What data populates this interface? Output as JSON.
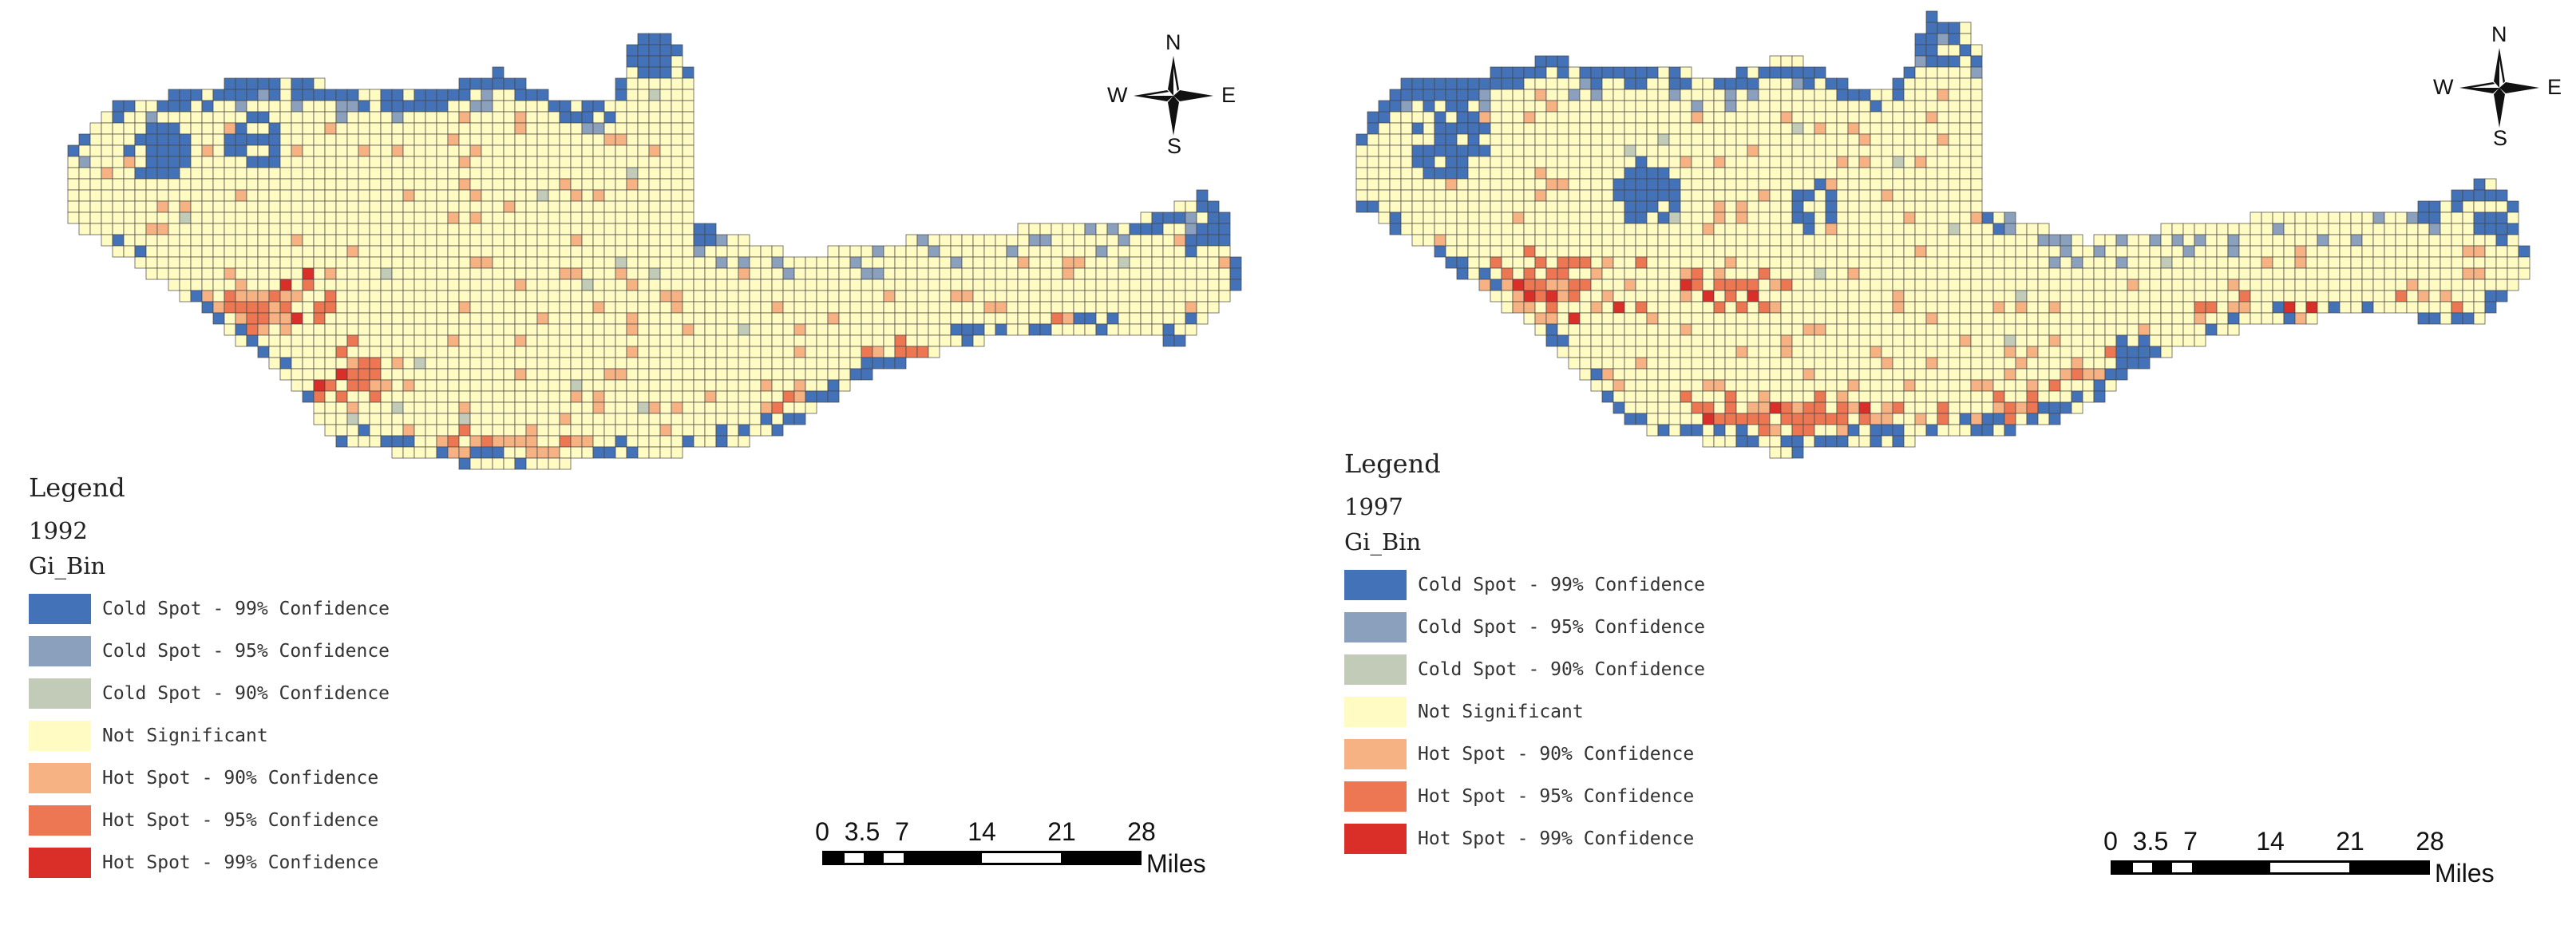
{
  "colors": {
    "cold99": "#4472b8",
    "cold95": "#8aa0bd",
    "cold90": "#c2cbb8",
    "ns": "#fffbc2",
    "hot90": "#f6b283",
    "hot95": "#ec7752",
    "hot99": "#d92f28",
    "grid": "#444444"
  },
  "maps": [
    {
      "legend_title": "Legend",
      "year": "1992",
      "field": "Gi_Bin",
      "items": [
        {
          "label": "Cold Spot - 99% Confidence",
          "color": "#4472b8"
        },
        {
          "label": "Cold Spot - 95% Confidence",
          "color": "#8aa0bd"
        },
        {
          "label": "Cold Spot - 90% Confidence",
          "color": "#c2cbb8"
        },
        {
          "label": "Not Significant",
          "color": "#fffbc2"
        },
        {
          "label": "Hot Spot - 90% Confidence",
          "color": "#f6b283"
        },
        {
          "label": "Hot Spot - 95% Confidence",
          "color": "#ec7752"
        },
        {
          "label": "Hot Spot - 99% Confidence",
          "color": "#d92f28"
        }
      ],
      "scale_ticks": [
        "0",
        "3.5",
        "7",
        "14",
        "21",
        "28"
      ],
      "scale_units": "Miles",
      "compass": {
        "n": "N",
        "s": "S",
        "e": "E",
        "w": "W"
      }
    },
    {
      "legend_title": "Legend",
      "year": "1997",
      "field": "Gi_Bin",
      "items": [
        {
          "label": "Cold Spot - 99% Confidence",
          "color": "#4472b8"
        },
        {
          "label": "Cold Spot - 95% Confidence",
          "color": "#8aa0bd"
        },
        {
          "label": "Cold Spot - 90% Confidence",
          "color": "#c2cbb8"
        },
        {
          "label": "Not Significant",
          "color": "#fffbc2"
        },
        {
          "label": "Hot Spot - 90% Confidence",
          "color": "#f6b283"
        },
        {
          "label": "Hot Spot - 95% Confidence",
          "color": "#ec7752"
        },
        {
          "label": "Hot Spot - 99% Confidence",
          "color": "#d92f28"
        }
      ],
      "scale_ticks": [
        "0",
        "3.5",
        "7",
        "14",
        "21",
        "28"
      ],
      "scale_units": "Miles",
      "compass": {
        "n": "N",
        "s": "S",
        "e": "E",
        "w": "W"
      }
    }
  ]
}
